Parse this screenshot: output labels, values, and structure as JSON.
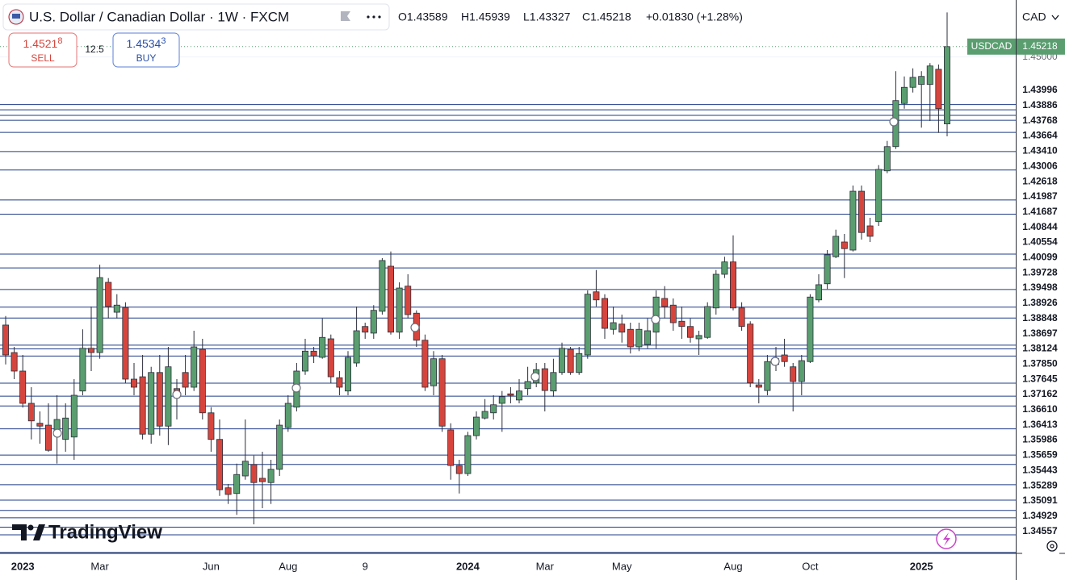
{
  "chart_data": {
    "type": "candlestick",
    "title": "U.S. Dollar / Canadian Dollar · 1W · FXCM",
    "ohlc_labels": [
      "O1.43589",
      "H1.45939",
      "L1.43327",
      "C1.45218",
      "+0.01830 (+1.28%)"
    ],
    "trade_panel": {
      "sell_price": "1.4521",
      "sell_pip": "8",
      "sell_label": "SELL",
      "spread": "12.5",
      "buy_price": "1.4534",
      "buy_pip": "3",
      "buy_label": "BUY"
    },
    "currency": "CAD",
    "brand": "TradingView",
    "up_color": "#5a9e70",
    "down_color": "#d6453d",
    "level_color": "#1f3c88",
    "ylim": [
      1.34538,
      1.462
    ],
    "yticks": [
      {
        "value": 1.45,
        "label": "1.45000"
      }
    ],
    "levels": [
      1.43996,
      1.43886,
      1.43768,
      1.43664,
      {
        "value": 1.4341,
        "label": "1.43410"
      },
      1.43006,
      1.42618,
      1.41987,
      1.41687,
      1.40844,
      1.40554,
      1.40099,
      1.39728,
      1.39498,
      1.38926,
      1.38848,
      1.38697,
      1.38124,
      {
        "value": 1.3785,
        "label": "1.37850"
      },
      1.37645,
      1.37162,
      {
        "value": 1.3661,
        "label": "1.36610"
      },
      1.36413,
      1.35986,
      1.35659,
      1.35443,
      1.35289,
      1.35091,
      1.34929,
      1.34557
    ],
    "categories": [
      null,
      null,
      "2023",
      null,
      null,
      null,
      null,
      null,
      null,
      null,
      null,
      "Mar",
      null,
      null,
      null,
      null,
      null,
      null,
      null,
      null,
      null,
      null,
      null,
      null,
      "Jun",
      null,
      null,
      null,
      null,
      null,
      null,
      null,
      null,
      "Aug",
      null,
      null,
      null,
      null,
      null,
      null,
      null,
      null,
      "9",
      null,
      null,
      null,
      null,
      null,
      null,
      null,
      null,
      null,
      null,
      null,
      "2024",
      null,
      null,
      null,
      null,
      null,
      null,
      null,
      null,
      "Mar",
      null,
      null,
      null,
      null,
      null,
      null,
      null,
      null,
      "May",
      null,
      null,
      null,
      null,
      null,
      null,
      null,
      null,
      null,
      null,
      null,
      null,
      "Aug",
      null,
      null,
      null,
      null,
      null,
      null,
      null,
      null,
      "Oct",
      null,
      null,
      null,
      null,
      null,
      null,
      null,
      null,
      null,
      null,
      null,
      null,
      "2025",
      null,
      null,
      null
    ],
    "series": [
      {
        "name": "USDCAD",
        "open": [
          1.3935,
          1.3877,
          1.3838,
          1.377,
          1.3728,
          1.3724,
          1.3702,
          1.3694,
          1.3699,
          1.3796,
          1.3886,
          1.3877,
          1.4025,
          1.3962,
          1.3972,
          1.3821,
          1.3826,
          1.3705,
          1.3835,
          1.3722,
          1.3801,
          1.3835,
          1.3804,
          1.3884,
          1.375,
          1.3694,
          1.3592,
          1.358,
          1.3617,
          1.3641,
          1.3612,
          1.3603,
          1.3631,
          1.3719,
          1.3762,
          1.3838,
          1.388,
          1.3867,
          1.3906,
          1.3824,
          1.3796,
          1.3855,
          1.3932,
          1.3918,
          1.3964,
          1.4059,
          1.392,
          1.4017,
          1.396,
          1.3903,
          1.3807,
          1.3864,
          1.3714,
          1.3639,
          1.3622,
          1.3702,
          1.3739,
          1.375,
          1.377,
          1.379,
          1.3777,
          1.3801,
          1.3813,
          1.3843,
          1.3796,
          1.3835,
          1.3884,
          1.3835,
          1.3872,
          1.4005,
          1.3991,
          1.3926,
          1.3937,
          1.3926,
          1.3889,
          1.3894,
          1.392,
          1.3991,
          1.3977,
          1.3943,
          1.3932,
          1.3906,
          1.3909,
          1.3971,
          1.4042,
          1.4068,
          1.3971,
          1.3937,
          1.3809,
          1.3797,
          1.3852,
          1.3872,
          1.3847,
          1.3816,
          1.3858,
          1.3988,
          1.4022,
          1.4079,
          1.411,
          1.4093,
          1.4217,
          1.4144,
          1.4153,
          1.426,
          1.4311,
          1.4402,
          1.4436,
          1.4442,
          1.4442,
          1.4474,
          1.43589
        ],
        "high": [
          1.3954,
          1.3889,
          1.3872,
          1.3804,
          1.3753,
          1.377,
          1.3787,
          1.377,
          1.3821,
          1.3926,
          1.3974,
          1.4062,
          1.4034,
          1.4,
          1.3983,
          1.3855,
          1.3872,
          1.3847,
          1.3872,
          1.3889,
          1.3821,
          1.3872,
          1.3923,
          1.3906,
          1.3762,
          1.3736,
          1.36,
          1.3643,
          1.3736,
          1.366,
          1.3668,
          1.3651,
          1.3736,
          1.3787,
          1.3855,
          1.3906,
          1.3889,
          1.3949,
          1.3915,
          1.3838,
          1.388,
          1.3974,
          1.394,
          1.3977,
          1.4076,
          1.409,
          1.4025,
          1.4042,
          1.3966,
          1.3915,
          1.388,
          1.3872,
          1.3728,
          1.3651,
          1.371,
          1.3753,
          1.3779,
          1.3787,
          1.3796,
          1.3804,
          1.3821,
          1.3847,
          1.3855,
          1.3855,
          1.3864,
          1.3898,
          1.3889,
          1.3889,
          1.4008,
          1.4051,
          1.4,
          1.3974,
          1.3957,
          1.394,
          1.394,
          1.3949,
          1.4008,
          1.4017,
          1.3991,
          1.3974,
          1.3949,
          1.3923,
          1.3983,
          1.4051,
          1.4079,
          1.4124,
          1.3983,
          1.3943,
          1.3821,
          1.3872,
          1.3889,
          1.3906,
          1.3855,
          1.3872,
          1.4,
          1.4042,
          1.4093,
          1.4136,
          1.4127,
          1.4229,
          1.4229,
          1.4161,
          1.4272,
          1.4323,
          1.447,
          1.4459,
          1.4476,
          1.447,
          1.4487,
          1.4484,
          1.45939
        ],
        "low": [
          1.3852,
          1.3821,
          1.3761,
          1.3694,
          1.3685,
          1.3668,
          1.3643,
          1.3668,
          1.3651,
          1.3787,
          1.3838,
          1.3864,
          1.3949,
          1.3949,
          1.3813,
          1.3787,
          1.3694,
          1.3685,
          1.3702,
          1.3682,
          1.3736,
          1.3787,
          1.3796,
          1.3736,
          1.3668,
          1.3575,
          1.3558,
          1.3535,
          1.3609,
          1.3515,
          1.3549,
          1.3558,
          1.3617,
          1.371,
          1.3753,
          1.383,
          1.3855,
          1.3864,
          1.3813,
          1.3787,
          1.3787,
          1.3847,
          1.3906,
          1.3906,
          1.3957,
          1.3915,
          1.3906,
          1.3949,
          1.3889,
          1.3796,
          1.3787,
          1.371,
          1.3609,
          1.358,
          1.3617,
          1.3694,
          1.3736,
          1.3736,
          1.371,
          1.377,
          1.377,
          1.3787,
          1.3804,
          1.3753,
          1.3784,
          1.383,
          1.383,
          1.383,
          1.3864,
          1.3974,
          1.3906,
          1.3915,
          1.3898,
          1.3875,
          1.388,
          1.3886,
          1.3886,
          1.3949,
          1.3923,
          1.3906,
          1.3898,
          1.3872,
          1.3906,
          1.3957,
          1.4034,
          1.3966,
          1.3923,
          1.3804,
          1.377,
          1.3787,
          1.3838,
          1.3847,
          1.3753,
          1.3787,
          1.3855,
          1.3983,
          1.4011,
          1.4076,
          1.4034,
          1.409,
          1.4115,
          1.411,
          1.4144,
          1.4255,
          1.4306,
          1.4391,
          1.4425,
          1.4351,
          1.4365,
          1.434,
          1.43327
        ],
        "close": [
          1.3872,
          1.3838,
          1.377,
          1.3733,
          1.3722,
          1.3671,
          1.3736,
          1.3739,
          1.3787,
          1.3886,
          1.3877,
          1.4035,
          1.3974,
          1.3977,
          1.3821,
          1.3804,
          1.3705,
          1.3835,
          1.3722,
          1.3847,
          1.3787,
          1.3804,
          1.3889,
          1.375,
          1.3694,
          1.3588,
          1.3578,
          1.362,
          1.3648,
          1.3603,
          1.3605,
          1.3631,
          1.3724,
          1.377,
          1.3838,
          1.388,
          1.387,
          1.3909,
          1.3826,
          1.3804,
          1.3867,
          1.3923,
          1.392,
          1.3966,
          1.4071,
          1.392,
          1.4013,
          1.3957,
          1.3903,
          1.3804,
          1.3864,
          1.3722,
          1.3639,
          1.3622,
          1.3702,
          1.3741,
          1.3753,
          1.3767,
          1.3784,
          1.3787,
          1.3796,
          1.3816,
          1.3841,
          1.3797,
          1.3835,
          1.3886,
          1.3835,
          1.3875,
          1.4,
          1.3988,
          1.3928,
          1.394,
          1.392,
          1.3889,
          1.3926,
          1.3923,
          1.3994,
          1.3974,
          1.394,
          1.3932,
          1.3909,
          1.3913,
          1.3974,
          1.4042,
          1.4068,
          1.3971,
          1.3932,
          1.3813,
          1.3804,
          1.3858,
          1.3864,
          1.3858,
          1.3816,
          1.386,
          1.3994,
          1.402,
          1.4083,
          1.4122,
          1.4096,
          1.4217,
          1.413,
          1.4122,
          1.4263,
          1.4311,
          1.4408,
          1.4436,
          1.4457,
          1.4459,
          1.4481,
          1.4391,
          1.45218
        ]
      }
    ]
  }
}
